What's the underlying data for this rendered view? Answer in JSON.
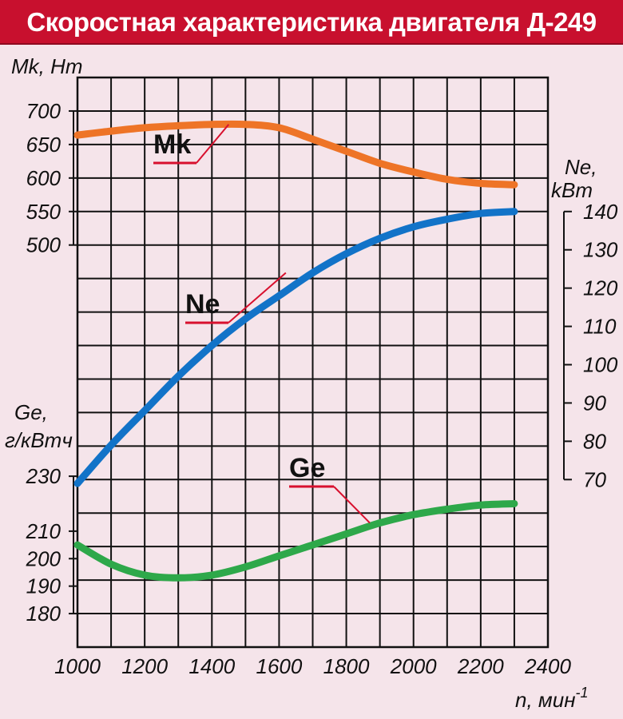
{
  "title": "Скоростная характеристика двигателя Д-249",
  "colors": {
    "header_bg": "#c8102e",
    "background": "#f5e4ea",
    "grid": "#111111",
    "mk": "#ee7427",
    "ne": "#1273c8",
    "ge": "#2ea84a",
    "leader": "#d8102e"
  },
  "chart_data": {
    "type": "line",
    "title": "Скоростная характеристика двигателя Д-249",
    "x_axis": {
      "label": "n, мин",
      "label_superscript": "-1",
      "range": [
        1000,
        2400
      ],
      "ticks": [
        1000,
        1200,
        1400,
        1600,
        1800,
        2000,
        2200,
        2400
      ],
      "tick_labels": [
        "1000",
        "1200",
        "1400",
        "1600",
        "1800",
        "2000",
        "2200",
        "2400"
      ]
    },
    "axes": {
      "mk": {
        "label": "Mk, Hm",
        "range": [
          500,
          700
        ],
        "ticks": [
          500,
          550,
          600,
          650,
          700
        ],
        "tick_labels": [
          "500",
          "550",
          "600",
          "650",
          "700"
        ]
      },
      "ne": {
        "label_line1": "Ne,",
        "label_line2": "kBm",
        "range": [
          70,
          140
        ],
        "ticks": [
          70,
          80,
          90,
          100,
          110,
          120,
          130,
          140
        ],
        "tick_labels": [
          "70",
          "80",
          "90",
          "100",
          "110",
          "120",
          "130",
          "140"
        ]
      },
      "ge": {
        "label_line1": "Ge,",
        "label_line2": "г/кВтч",
        "range": [
          180,
          230
        ],
        "ticks": [
          180,
          190,
          200,
          210,
          230
        ],
        "tick_labels": [
          "180",
          "190",
          "200",
          "210",
          "230"
        ]
      }
    },
    "series": [
      {
        "name": "Mk",
        "axis": "mk",
        "label": "Mk",
        "x": [
          1000,
          1100,
          1200,
          1300,
          1400,
          1500,
          1600,
          1700,
          1800,
          1900,
          2000,
          2100,
          2200,
          2300
        ],
        "values": [
          664,
          670,
          675,
          678,
          680,
          680,
          675,
          658,
          640,
          622,
          609,
          598,
          592,
          590
        ]
      },
      {
        "name": "Ne",
        "axis": "ne",
        "label": "Ne",
        "x": [
          1000,
          1100,
          1200,
          1300,
          1400,
          1500,
          1600,
          1700,
          1800,
          1900,
          2000,
          2100,
          2200,
          2300
        ],
        "values": [
          69,
          79,
          88,
          97,
          105,
          112,
          118,
          124,
          129,
          133,
          136,
          138,
          139.5,
          140
        ]
      },
      {
        "name": "Ge",
        "axis": "ge",
        "label": "Ge",
        "x": [
          1000,
          1100,
          1200,
          1300,
          1400,
          1500,
          1600,
          1700,
          1800,
          1900,
          2000,
          2100,
          2200,
          2300
        ],
        "values": [
          205,
          198,
          194,
          193,
          194,
          197,
          201,
          205,
          209,
          213,
          216,
          218,
          219.5,
          220
        ]
      }
    ]
  }
}
